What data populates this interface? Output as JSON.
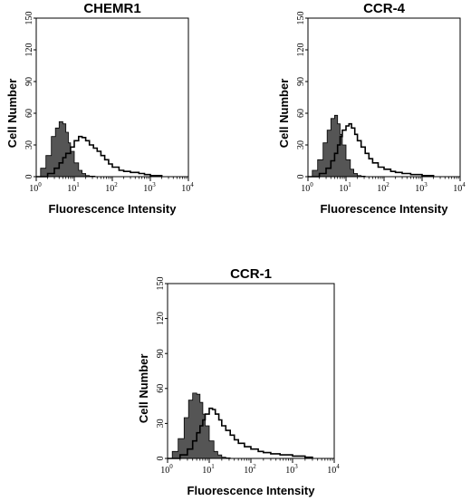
{
  "chart_data": [
    {
      "type": "area",
      "title": "CHEMR1",
      "xlabel": "Fluorescence Intensity",
      "ylabel": "Cell Number",
      "x_scale": "log",
      "xlim": [
        1,
        10000
      ],
      "ylim": [
        0,
        150
      ],
      "x_ticks": [
        "10^0",
        "10^1",
        "10^2",
        "10^3",
        "10^4"
      ],
      "y_ticks": [
        "0",
        "30",
        "60",
        "90",
        "120",
        "150"
      ],
      "series": [
        {
          "fill": "#555555",
          "x": [
            1,
            1.3,
            1.8,
            2.5,
            3.2,
            4,
            5,
            6,
            7,
            8,
            10,
            13,
            16,
            20,
            25,
            35
          ],
          "y": [
            0,
            8,
            20,
            38,
            46,
            52,
            50,
            42,
            32,
            24,
            13,
            6,
            3,
            1,
            0.5,
            0
          ]
        },
        {
          "fill": "none",
          "x": [
            1,
            2,
            3,
            4,
            5,
            6,
            8,
            10,
            13,
            16,
            20,
            25,
            32,
            40,
            50,
            63,
            80,
            100,
            150,
            200,
            300,
            500,
            700,
            1000,
            2000
          ],
          "y": [
            0,
            3,
            8,
            13,
            18,
            22,
            28,
            34,
            38,
            37,
            34,
            30,
            27,
            24,
            20,
            16,
            12,
            9,
            6,
            5,
            4,
            3,
            2,
            1,
            0
          ]
        }
      ]
    },
    {
      "type": "area",
      "title": "CCR-4",
      "xlabel": "Fluorescence Intensity",
      "ylabel": "Cell Number",
      "x_scale": "log",
      "xlim": [
        1,
        10000
      ],
      "ylim": [
        0,
        150
      ],
      "x_ticks": [
        "10^0",
        "10^1",
        "10^2",
        "10^3",
        "10^4"
      ],
      "y_ticks": [
        "0",
        "30",
        "60",
        "90",
        "120",
        "150"
      ],
      "series": [
        {
          "fill": "#555555",
          "x": [
            1,
            1.3,
            1.8,
            2.5,
            3.2,
            4,
            5,
            6,
            7,
            8,
            10,
            13,
            16,
            20,
            25,
            32
          ],
          "y": [
            0,
            6,
            16,
            32,
            44,
            55,
            58,
            50,
            40,
            30,
            16,
            7,
            3,
            1,
            0.5,
            0
          ]
        },
        {
          "fill": "none",
          "x": [
            1,
            2,
            3,
            4,
            5,
            6,
            7,
            8,
            10,
            12,
            14,
            17,
            20,
            25,
            32,
            40,
            50,
            70,
            100,
            150,
            200,
            300,
            500,
            1000,
            2000
          ],
          "y": [
            0,
            3,
            8,
            15,
            22,
            30,
            38,
            44,
            48,
            50,
            46,
            40,
            34,
            28,
            22,
            17,
            13,
            9,
            7,
            5,
            4,
            3,
            2,
            1,
            0
          ]
        }
      ]
    },
    {
      "type": "area",
      "title": "CCR-1",
      "xlabel": "Fluorescence Intensity",
      "ylabel": "Cell Number",
      "x_scale": "log",
      "xlim": [
        1,
        10000
      ],
      "ylim": [
        0,
        150
      ],
      "x_ticks": [
        "10^0",
        "10^1",
        "10^2",
        "10^3",
        "10^4"
      ],
      "y_ticks": [
        "0",
        "30",
        "60",
        "90",
        "120",
        "150"
      ],
      "series": [
        {
          "fill": "#555555",
          "x": [
            1,
            1.3,
            1.8,
            2.5,
            3.2,
            4,
            5,
            6,
            7,
            8,
            10,
            13,
            16,
            20,
            25,
            32
          ],
          "y": [
            0,
            6,
            17,
            35,
            50,
            56,
            55,
            48,
            38,
            28,
            15,
            6,
            3,
            1,
            0.5,
            0
          ]
        },
        {
          "fill": "none",
          "x": [
            1,
            2,
            3,
            4,
            5,
            6,
            7,
            8,
            10,
            12,
            14,
            17,
            20,
            25,
            32,
            40,
            50,
            70,
            100,
            150,
            200,
            300,
            500,
            1000,
            2000,
            3000
          ],
          "y": [
            0,
            3,
            8,
            15,
            22,
            28,
            33,
            38,
            43,
            42,
            38,
            33,
            28,
            24,
            20,
            16,
            13,
            10,
            8,
            6,
            5,
            4,
            3,
            2,
            1,
            0
          ]
        }
      ]
    }
  ]
}
